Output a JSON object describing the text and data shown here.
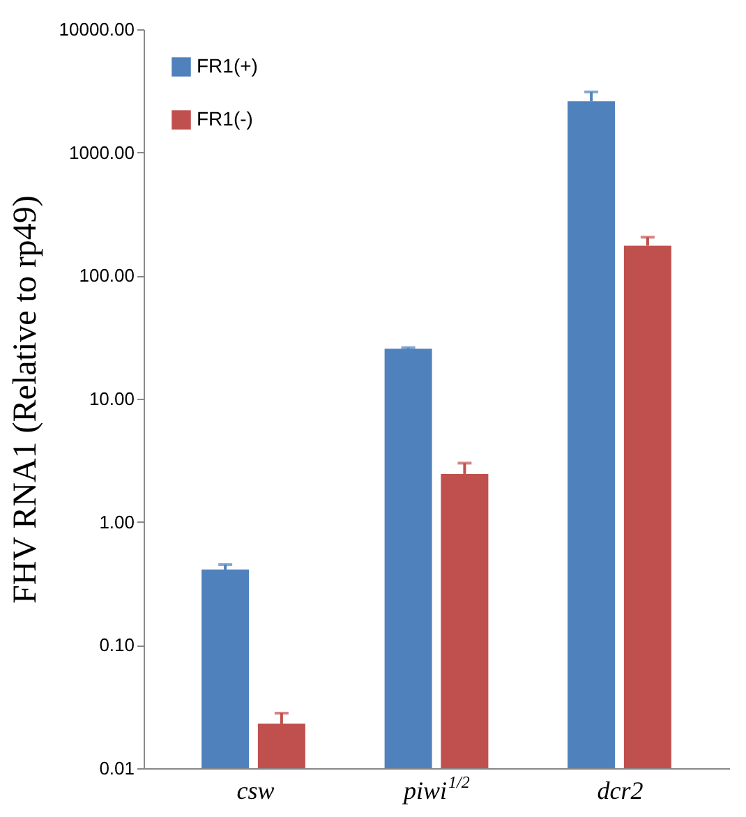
{
  "chart_data": {
    "type": "bar",
    "ylabel": "FHV RNA1 (Relative to rp49)",
    "categories": [
      "csw",
      "piwi$^{1/2}$",
      "dcr2"
    ],
    "series": [
      {
        "name": "FR1(+)",
        "color": "#4f81bd",
        "values": [
          0.41,
          25.5,
          2600
        ],
        "errors": [
          [
            0.41,
            0.45
          ],
          [
            25.5,
            26
          ],
          [
            2600,
            3100
          ]
        ]
      },
      {
        "name": "FR1(-)",
        "color": "#c0504d",
        "values": [
          0.023,
          2.45,
          175
        ],
        "errors": [
          [
            0.023,
            0.028
          ],
          [
            2.45,
            3.0
          ],
          [
            175,
            205
          ]
        ]
      }
    ],
    "log": "y",
    "ylim": [
      0.01,
      10000
    ],
    "yticks": [
      {
        "value": 0.01,
        "label": "0.01"
      },
      {
        "value": 0.1,
        "label": "0.10"
      },
      {
        "value": 1,
        "label": "1.00"
      },
      {
        "value": 10,
        "label": "10.00"
      },
      {
        "value": 100,
        "label": "100.00"
      },
      {
        "value": 1000,
        "label": "1000.00"
      },
      {
        "value": 10000,
        "label": "10000.00"
      }
    ],
    "grid": false,
    "legend": "top left"
  }
}
